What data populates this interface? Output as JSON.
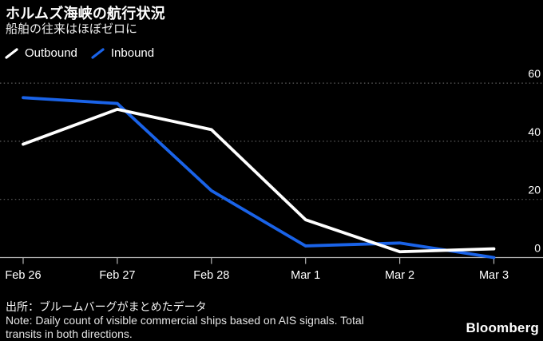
{
  "header": {
    "title": "ホルムズ海峡の航行状況",
    "subtitle": "船舶の往来はほぼゼロに"
  },
  "legend": {
    "items": [
      {
        "label": "Outbound",
        "color": "#FFFFFF"
      },
      {
        "label": "Inbound",
        "color": "#1A63E8"
      }
    ]
  },
  "chart_data": {
    "type": "line",
    "categories": [
      "Feb 26",
      "Feb 27",
      "Feb 28",
      "Mar 1",
      "Mar 2",
      "Mar 3"
    ],
    "series": [
      {
        "name": "Outbound",
        "color": "#FFFFFF",
        "values": [
          39,
          51,
          44,
          13,
          2,
          3
        ]
      },
      {
        "name": "Inbound",
        "color": "#1A63E8",
        "values": [
          55,
          53,
          23,
          4,
          5,
          0
        ]
      }
    ],
    "title": "ホルムズ海峡の航行状況",
    "xlabel": "",
    "ylabel": "",
    "ylim": [
      0,
      60
    ],
    "yticks": [
      0,
      20,
      40,
      60
    ],
    "grid": "horizontal-dotted",
    "axis_side": "right",
    "legend_position": "top-left"
  },
  "footer": {
    "source": "出所：ブルームバーグがまとめたデータ",
    "note_line1": "Note: Daily count of visible commercial ships based on AIS signals. Total",
    "note_line2": "transits in both directions.",
    "brand": "Bloomberg"
  },
  "colors": {
    "background": "#000000",
    "grid": "#5E5E5E",
    "axis": "#B5B5B5",
    "tick_label": "#FFFFFF"
  }
}
